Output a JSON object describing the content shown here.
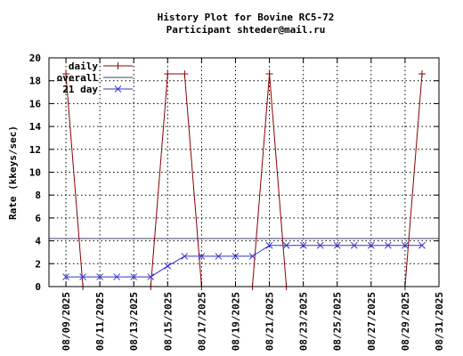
{
  "chart_data": {
    "type": "line",
    "title": "History Plot for Bovine RC5-72",
    "subtitle": "Participant shteder@mail.ru",
    "ylabel": "Rate (kkeys/sec)",
    "xlabel": "",
    "ylim": [
      0,
      20
    ],
    "yticks": [
      "0",
      "2",
      "4",
      "6",
      "8",
      "10",
      "12",
      "14",
      "16",
      "18",
      "20"
    ],
    "xlim": [
      "08/08/2025",
      "08/31/2025"
    ],
    "xticks": [
      "08/09/2025",
      "08/11/2025",
      "08/13/2025",
      "08/15/2025",
      "08/17/2025",
      "08/19/2025",
      "08/21/2025",
      "08/23/2025",
      "08/25/2025",
      "08/27/2025",
      "08/29/2025",
      "08/31/2025"
    ],
    "grid": true,
    "legend_position": "top-left",
    "series": [
      {
        "name": "daily",
        "color": "#8b0000",
        "marker": "plus",
        "points": [
          {
            "x": "08/09/2025",
            "y": 18.6
          },
          {
            "x": "08/10/2025",
            "y": 0
          },
          {
            "x": "08/14/2025",
            "y": 0
          },
          {
            "x": "08/15/2025",
            "y": 18.6
          },
          {
            "x": "08/16/2025",
            "y": 18.6
          },
          {
            "x": "08/17/2025",
            "y": 0
          },
          {
            "x": "08/20/2025",
            "y": 0
          },
          {
            "x": "08/21/2025",
            "y": 18.6
          },
          {
            "x": "08/22/2025",
            "y": 0
          },
          {
            "x": "08/29/2025",
            "y": 0
          },
          {
            "x": "08/30/2025",
            "y": 18.6
          }
        ]
      },
      {
        "name": "overall",
        "color": "#404060",
        "marker": "none",
        "constant": 4.2
      },
      {
        "name": "21 day",
        "color": "#3333cc",
        "marker": "x",
        "points": [
          {
            "x": "08/09/2025",
            "y": 0.85
          },
          {
            "x": "08/10/2025",
            "y": 0.85
          },
          {
            "x": "08/11/2025",
            "y": 0.85
          },
          {
            "x": "08/12/2025",
            "y": 0.85
          },
          {
            "x": "08/13/2025",
            "y": 0.85
          },
          {
            "x": "08/14/2025",
            "y": 0.85
          },
          {
            "x": "08/15/2025",
            "y": 1.8
          },
          {
            "x": "08/16/2025",
            "y": 2.65
          },
          {
            "x": "08/17/2025",
            "y": 2.65
          },
          {
            "x": "08/18/2025",
            "y": 2.65
          },
          {
            "x": "08/19/2025",
            "y": 2.65
          },
          {
            "x": "08/20/2025",
            "y": 2.65
          },
          {
            "x": "08/21/2025",
            "y": 3.6
          },
          {
            "x": "08/22/2025",
            "y": 3.6
          },
          {
            "x": "08/23/2025",
            "y": 3.6
          },
          {
            "x": "08/24/2025",
            "y": 3.6
          },
          {
            "x": "08/25/2025",
            "y": 3.6
          },
          {
            "x": "08/26/2025",
            "y": 3.6
          },
          {
            "x": "08/27/2025",
            "y": 3.6
          },
          {
            "x": "08/28/2025",
            "y": 3.6
          },
          {
            "x": "08/29/2025",
            "y": 3.6
          },
          {
            "x": "08/30/2025",
            "y": 3.6
          }
        ]
      }
    ]
  }
}
